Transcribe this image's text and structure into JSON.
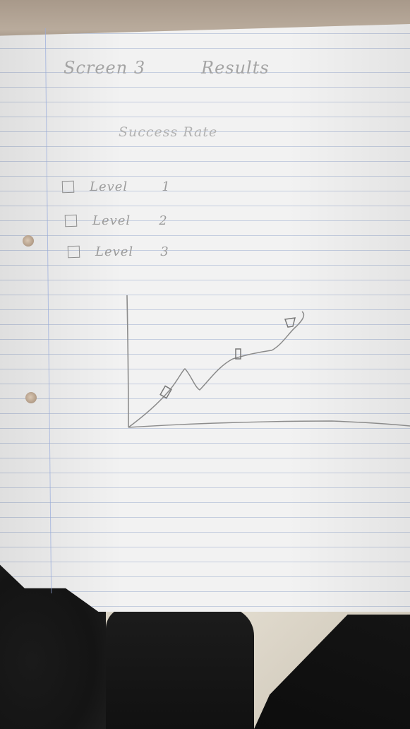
{
  "sketch": {
    "title": "Screen 3 Results",
    "title_parts": [
      "Screen 3",
      "Results"
    ],
    "subtitle": "Success Rate",
    "checklist": [
      {
        "label": "Level",
        "number": "1"
      },
      {
        "label": "Level",
        "number": "2"
      },
      {
        "label": "Level",
        "number": "3"
      }
    ]
  },
  "colors": {
    "paper": "#f2f2f2",
    "rule_lines": "#8ca0c8",
    "pencil": "#9a9a9a"
  }
}
